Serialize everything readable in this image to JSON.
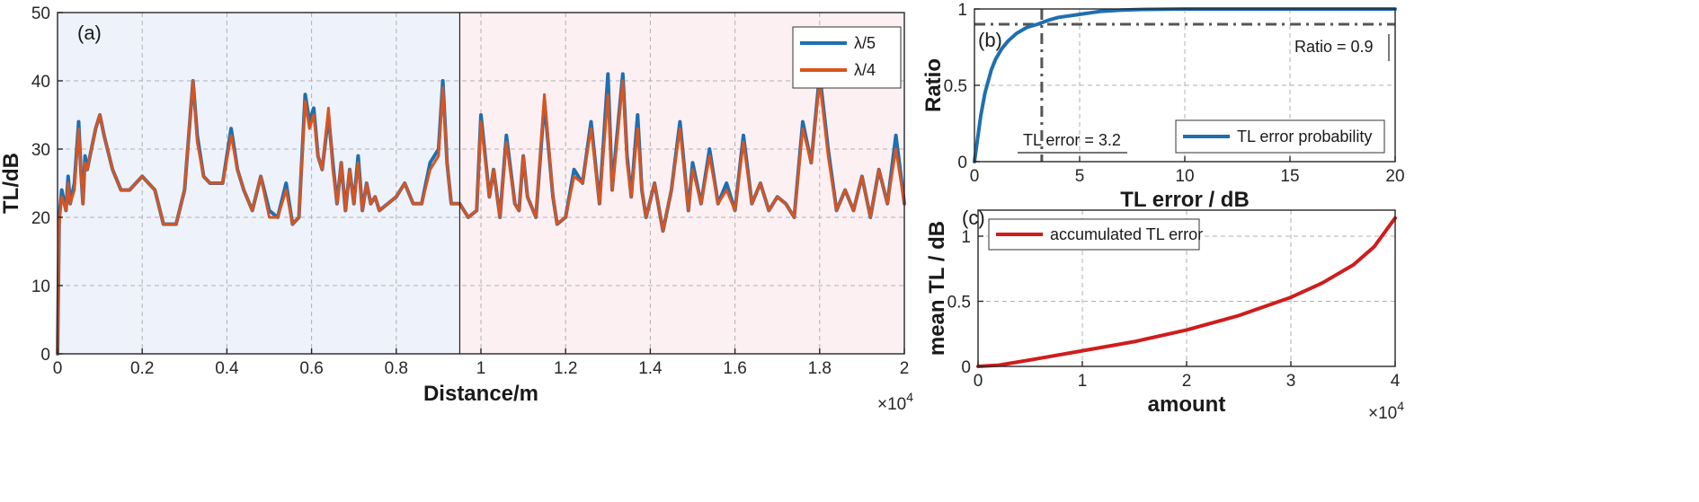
{
  "colors": {
    "blue": "#1f6fb0",
    "orange": "#d9541e",
    "red": "#d01c1c",
    "dark_gray": "#555555",
    "region_left": "#eef2fb",
    "region_right": "#fcf0f3"
  },
  "chart_data": [
    {
      "id": "a",
      "type": "line",
      "panel_label": "(a)",
      "xlabel": "Distance/m",
      "ylabel": "TL/dB",
      "x_multiplier": "×10",
      "x_multiplier_exp": "4",
      "xlim": [
        0,
        2
      ],
      "ylim": [
        0,
        50
      ],
      "xticks": [
        0,
        0.2,
        0.4,
        0.6,
        0.8,
        1,
        1.2,
        1.4,
        1.6,
        1.8,
        2
      ],
      "xtick_labels": [
        "0",
        "0.2",
        "0.4",
        "0.6",
        "0.8",
        "1",
        "1.2",
        "1.4",
        "1.6",
        "1.8",
        "2"
      ],
      "yticks": [
        0,
        10,
        20,
        30,
        40,
        50
      ],
      "ytick_labels": [
        "0",
        "10",
        "20",
        "30",
        "40",
        "50"
      ],
      "grid": true,
      "legend_position": "top-right",
      "divider_x": 0.95,
      "x": [
        0,
        0.004,
        0.01,
        0.02,
        0.025,
        0.03,
        0.04,
        0.05,
        0.055,
        0.06,
        0.065,
        0.07,
        0.08,
        0.09,
        0.1,
        0.11,
        0.13,
        0.15,
        0.17,
        0.2,
        0.23,
        0.25,
        0.28,
        0.3,
        0.32,
        0.33,
        0.345,
        0.36,
        0.39,
        0.41,
        0.425,
        0.44,
        0.46,
        0.48,
        0.5,
        0.52,
        0.54,
        0.555,
        0.57,
        0.585,
        0.595,
        0.605,
        0.615,
        0.625,
        0.64,
        0.65,
        0.66,
        0.67,
        0.68,
        0.69,
        0.7,
        0.71,
        0.72,
        0.73,
        0.74,
        0.75,
        0.76,
        0.78,
        0.8,
        0.82,
        0.84,
        0.86,
        0.88,
        0.9,
        0.91,
        0.92,
        0.93,
        0.95,
        0.97,
        0.99,
        1.0,
        1.02,
        1.03,
        1.045,
        1.06,
        1.08,
        1.09,
        1.1,
        1.11,
        1.13,
        1.15,
        1.17,
        1.18,
        1.2,
        1.22,
        1.24,
        1.26,
        1.28,
        1.3,
        1.31,
        1.32,
        1.335,
        1.345,
        1.355,
        1.37,
        1.38,
        1.39,
        1.41,
        1.43,
        1.45,
        1.47,
        1.49,
        1.5,
        1.52,
        1.54,
        1.56,
        1.58,
        1.6,
        1.62,
        1.64,
        1.66,
        1.68,
        1.7,
        1.72,
        1.74,
        1.76,
        1.78,
        1.8,
        1.82,
        1.84,
        1.86,
        1.88,
        1.9,
        1.92,
        1.94,
        1.96,
        1.98,
        2.0
      ],
      "series": [
        {
          "name": "λ/5",
          "color_key": "blue",
          "values": [
            0,
            20,
            24,
            21,
            26,
            22,
            25,
            34,
            27,
            22,
            29,
            27,
            30,
            33,
            35,
            32,
            27,
            24,
            24,
            26,
            24,
            19,
            19,
            24,
            40,
            32,
            26,
            25,
            25,
            33,
            27,
            24,
            21,
            26,
            21,
            20,
            25,
            19,
            20,
            38,
            34,
            36,
            29,
            27,
            35,
            28,
            22,
            28,
            21,
            27,
            22,
            29,
            21,
            25,
            22,
            23,
            21,
            22,
            23,
            25,
            22,
            22,
            28,
            30,
            40,
            28,
            22,
            22,
            20,
            21,
            35,
            23,
            27,
            20,
            32,
            22,
            21,
            29,
            23,
            20,
            37,
            23,
            19,
            20,
            27,
            25,
            34,
            22,
            41,
            24,
            31,
            41,
            29,
            23,
            35,
            24,
            20,
            25,
            18,
            24,
            34,
            21,
            28,
            22,
            30,
            22,
            25,
            21,
            32,
            22,
            25,
            21,
            23,
            22,
            20,
            34,
            28,
            41,
            30,
            21,
            24,
            21,
            26,
            20,
            27,
            22,
            32,
            22
          ]
        },
        {
          "name": "λ/4",
          "color_key": "orange",
          "values": [
            0,
            19,
            23,
            21,
            25,
            22,
            24,
            33,
            27,
            22,
            28,
            27,
            30,
            33,
            35,
            32,
            27,
            24,
            24,
            26,
            24,
            19,
            19,
            24,
            40,
            31,
            26,
            25,
            25,
            32,
            27,
            24,
            21,
            26,
            20,
            20,
            24,
            19,
            20,
            37,
            33,
            35,
            29,
            27,
            36,
            27,
            22,
            28,
            21,
            27,
            22,
            28,
            21,
            25,
            22,
            23,
            21,
            22,
            23,
            25,
            22,
            22,
            27,
            29,
            39,
            28,
            22,
            22,
            20,
            21,
            34,
            23,
            27,
            20,
            31,
            22,
            21,
            29,
            23,
            20,
            38,
            23,
            19,
            20,
            26,
            25,
            33,
            22,
            38,
            24,
            30,
            40,
            28,
            23,
            33,
            24,
            20,
            25,
            18,
            24,
            33,
            21,
            27,
            22,
            29,
            22,
            24,
            21,
            31,
            22,
            25,
            21,
            23,
            22,
            20,
            33,
            28,
            40,
            29,
            21,
            24,
            21,
            26,
            20,
            27,
            22,
            30,
            22
          ]
        }
      ]
    },
    {
      "id": "b",
      "type": "line",
      "panel_label": "(b)",
      "xlabel": "TL error / dB",
      "ylabel": "Ratio",
      "xlim": [
        0,
        20
      ],
      "ylim": [
        0,
        1
      ],
      "xticks": [
        0,
        5,
        10,
        15,
        20
      ],
      "xtick_labels": [
        "0",
        "5",
        "10",
        "15",
        "20"
      ],
      "yticks": [
        0,
        0.5,
        1
      ],
      "ytick_labels": [
        "0",
        "0.5",
        "1"
      ],
      "grid": true,
      "legend_position": "bottom-right",
      "x": [
        0,
        0.1,
        0.3,
        0.5,
        0.8,
        1,
        1.3,
        1.6,
        2,
        2.5,
        3,
        3.2,
        3.6,
        4,
        4.5,
        5,
        5.5,
        6,
        7,
        8,
        9,
        10,
        12,
        15,
        18,
        20
      ],
      "series": [
        {
          "name": "TL error probability",
          "color_key": "blue",
          "values": [
            0,
            0.1,
            0.3,
            0.45,
            0.6,
            0.67,
            0.74,
            0.79,
            0.84,
            0.88,
            0.9,
            0.91,
            0.93,
            0.945,
            0.955,
            0.965,
            0.975,
            0.985,
            0.993,
            0.997,
            0.999,
            1,
            1,
            1,
            1,
            1
          ]
        }
      ],
      "annotations": {
        "ratio_line_y": 0.9,
        "error_line_x": 3.2,
        "ratio_label": "Ratio = 0.9",
        "error_label": "TL error = 3.2"
      }
    },
    {
      "id": "c",
      "type": "line",
      "panel_label": "(c)",
      "xlabel": "amount",
      "ylabel": "mean TL / dB",
      "x_multiplier": "×10",
      "x_multiplier_exp": "4",
      "xlim": [
        0,
        4
      ],
      "ylim": [
        0,
        1.2
      ],
      "xticks": [
        0,
        1,
        2,
        3,
        4
      ],
      "xtick_labels": [
        "0",
        "1",
        "2",
        "3",
        "4"
      ],
      "yticks": [
        0,
        0.5,
        1
      ],
      "ytick_labels": [
        "0",
        "0.5",
        "1"
      ],
      "grid": true,
      "legend_position": "top-left",
      "x": [
        0,
        0.2,
        0.5,
        1,
        1.5,
        2,
        2.5,
        3,
        3.3,
        3.6,
        3.8,
        4
      ],
      "series": [
        {
          "name": "accumulated TL error",
          "color_key": "red",
          "values": [
            0,
            0.01,
            0.05,
            0.12,
            0.19,
            0.28,
            0.39,
            0.53,
            0.64,
            0.78,
            0.92,
            1.14
          ]
        }
      ]
    }
  ]
}
